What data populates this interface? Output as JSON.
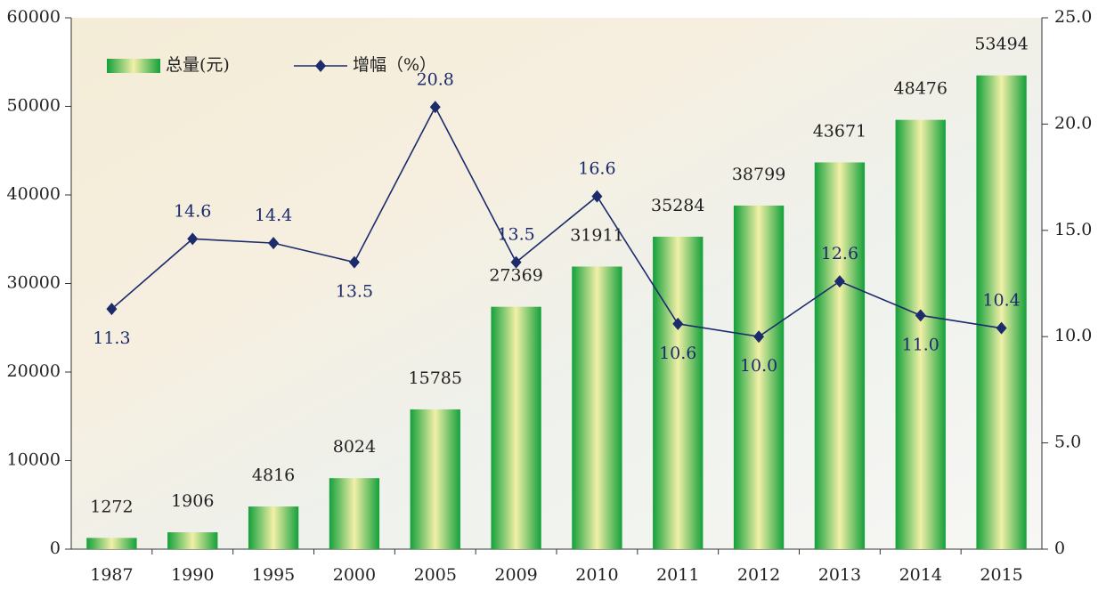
{
  "chart_data": {
    "type": "bar-line",
    "categories": [
      "1987",
      "1990",
      "1995",
      "2000",
      "2005",
      "2009",
      "2010",
      "2011",
      "2012",
      "2013",
      "2014",
      "2015"
    ],
    "series": [
      {
        "name": "总量(元)",
        "type": "bar",
        "color": "#1fae3c",
        "values": [
          1272,
          1906,
          4816,
          8024,
          15785,
          27369,
          31911,
          35284,
          38799,
          43671,
          48476,
          53494
        ]
      },
      {
        "name": "增幅（%）",
        "type": "line",
        "axis": "y2",
        "color": "#1b2b6b",
        "values": [
          11.3,
          14.6,
          14.4,
          13.5,
          20.8,
          13.5,
          16.6,
          10.6,
          10.0,
          12.6,
          11.0,
          10.4
        ],
        "value_labels": [
          "11.3",
          "14.6",
          "14.4",
          "13.5",
          "20.8",
          "13.5",
          "16.6",
          "10.6",
          "10.0",
          "12.6",
          "11.0",
          "10.4"
        ]
      }
    ],
    "ylim": [
      0,
      60000
    ],
    "yticks": [
      0,
      10000,
      20000,
      30000,
      40000,
      50000,
      60000
    ],
    "y2lim": [
      0,
      25
    ],
    "y2ticks": [
      0,
      {
        "value": 5,
        "label": "5.0"
      },
      {
        "value": 10,
        "label": "10.0"
      },
      {
        "value": 15,
        "label": "15.0"
      },
      {
        "value": 20,
        "label": "20.0"
      },
      {
        "value": 25,
        "label": "25.0"
      }
    ],
    "legend": "top-left"
  }
}
